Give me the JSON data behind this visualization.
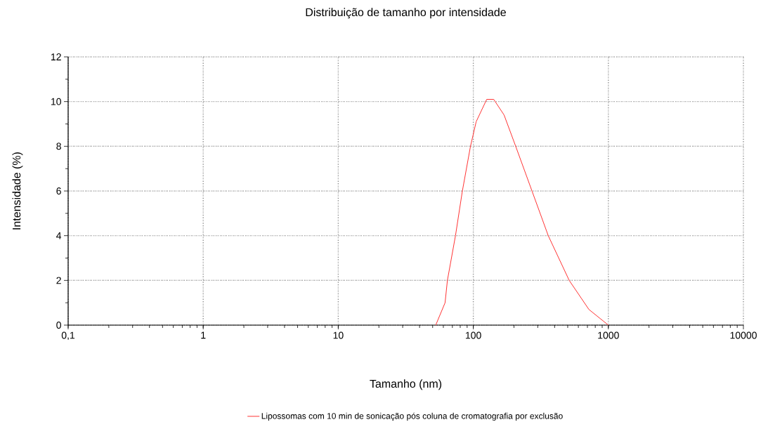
{
  "chart_data": {
    "type": "line",
    "title": "Distribuição de tamanho por intensidade",
    "xlabel": "Tamanho (nm)",
    "ylabel": "Intensidade (%)",
    "x": [
      52.7,
      61.8,
      64.3,
      73.8,
      83,
      95.3,
      105,
      125.7,
      141.6,
      169,
      206,
      272,
      359,
      513,
      718,
      1000
    ],
    "series": [
      {
        "name": "Lipossomas com 10 min de sonicação pós coluna de cromatografia por exclusão",
        "color": "#ff3333",
        "values": [
          0,
          1,
          2,
          4,
          6,
          8,
          9.1,
          10.1,
          10.1,
          9.4,
          8,
          6,
          4,
          2,
          0.7,
          0
        ]
      }
    ],
    "xlim": [
      0.1,
      10000
    ],
    "ylim": [
      0,
      12
    ],
    "xticks": [
      {
        "value": 0.1,
        "label": "0,1"
      },
      1,
      10,
      100,
      1000,
      10000
    ],
    "yticks": [
      0,
      2,
      4,
      6,
      8,
      10,
      12
    ],
    "log": "x",
    "grid": true,
    "legend": "bottom",
    "line_style": "solid"
  }
}
